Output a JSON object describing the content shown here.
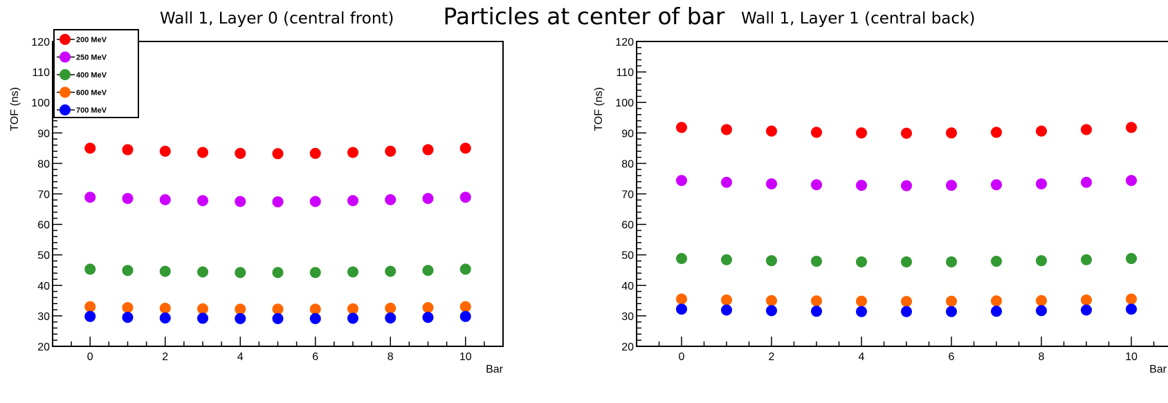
{
  "figure_title": "Particles at center of bar",
  "chart_data": [
    {
      "type": "scatter",
      "title": "Wall 1, Layer 0 (central front)",
      "xlabel": "Bar",
      "ylabel": "TOF (ns)",
      "xlim": [
        -1,
        11
      ],
      "ylim": [
        20,
        120
      ],
      "xticks": [
        "0",
        "2",
        "4",
        "6",
        "8",
        "10"
      ],
      "yticks": [
        "20",
        "30",
        "40",
        "50",
        "60",
        "70",
        "80",
        "90",
        "100",
        "110",
        "120"
      ],
      "legend_position": "top-left",
      "x": [
        0,
        1,
        2,
        3,
        4,
        5,
        6,
        7,
        8,
        9,
        10
      ],
      "series": [
        {
          "name": "200 MeV",
          "color": "#ff0000",
          "values": [
            85.0,
            84.5,
            84.0,
            83.6,
            83.3,
            83.2,
            83.3,
            83.6,
            84.0,
            84.5,
            85.0
          ]
        },
        {
          "name": "250 MeV",
          "color": "#cc00ff",
          "values": [
            68.9,
            68.5,
            68.1,
            67.8,
            67.5,
            67.4,
            67.5,
            67.8,
            68.1,
            68.5,
            68.9
          ]
        },
        {
          "name": "400 MeV",
          "color": "#339933",
          "values": [
            45.3,
            44.9,
            44.6,
            44.4,
            44.2,
            44.2,
            44.2,
            44.4,
            44.6,
            44.9,
            45.3
          ]
        },
        {
          "name": "600 MeV",
          "color": "#ff6600",
          "values": [
            33.0,
            32.7,
            32.5,
            32.3,
            32.2,
            32.2,
            32.2,
            32.3,
            32.5,
            32.7,
            33.0
          ]
        },
        {
          "name": "700 MeV",
          "color": "#0000ff",
          "values": [
            29.8,
            29.5,
            29.3,
            29.2,
            29.1,
            29.1,
            29.1,
            29.2,
            29.3,
            29.5,
            29.8
          ]
        }
      ]
    },
    {
      "type": "scatter",
      "title": "Wall 1, Layer 1 (central back)",
      "xlabel": "Bar",
      "ylabel": "TOF (ns)",
      "xlim": [
        -1,
        11
      ],
      "ylim": [
        20,
        120
      ],
      "xticks": [
        "0",
        "2",
        "4",
        "6",
        "8",
        "10"
      ],
      "yticks": [
        "20",
        "30",
        "40",
        "50",
        "60",
        "70",
        "80",
        "90",
        "100",
        "110",
        "120"
      ],
      "x": [
        0,
        1,
        2,
        3,
        4,
        5,
        6,
        7,
        8,
        9,
        10
      ],
      "series": [
        {
          "color": "#ff0000",
          "values": [
            91.8,
            91.1,
            90.6,
            90.2,
            90.0,
            89.9,
            90.0,
            90.2,
            90.6,
            91.1,
            91.8
          ]
        },
        {
          "color": "#cc00ff",
          "values": [
            74.4,
            73.8,
            73.3,
            73.0,
            72.8,
            72.7,
            72.8,
            73.0,
            73.3,
            73.8,
            74.4
          ]
        },
        {
          "color": "#339933",
          "values": [
            48.8,
            48.4,
            48.1,
            47.9,
            47.7,
            47.7,
            47.7,
            47.9,
            48.1,
            48.4,
            48.8
          ]
        },
        {
          "color": "#ff6600",
          "values": [
            35.5,
            35.2,
            35.0,
            34.9,
            34.8,
            34.7,
            34.8,
            34.9,
            35.0,
            35.2,
            35.5
          ]
        },
        {
          "color": "#0000ff",
          "values": [
            32.2,
            31.9,
            31.7,
            31.5,
            31.4,
            31.4,
            31.4,
            31.5,
            31.7,
            31.9,
            32.2
          ]
        }
      ]
    }
  ]
}
